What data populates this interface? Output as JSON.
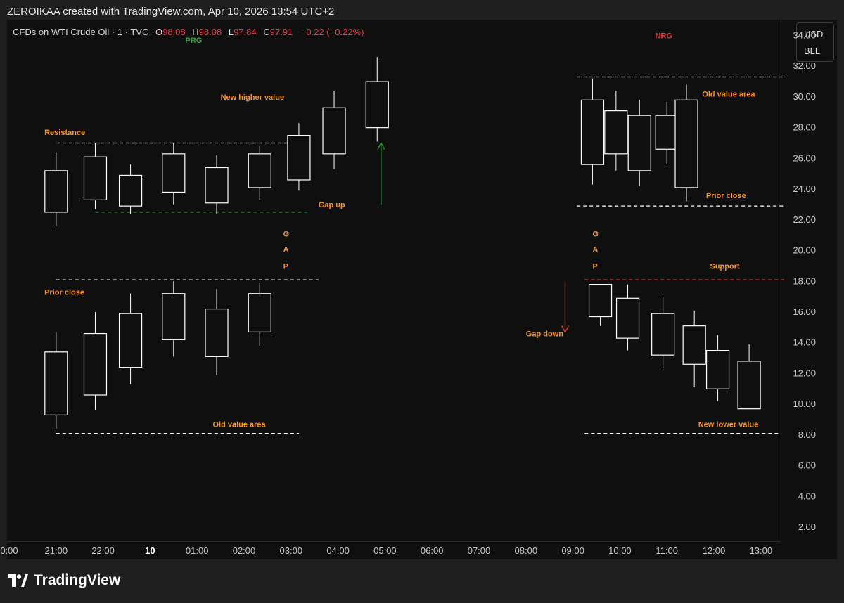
{
  "header": {
    "text": "ZEROIKAA created with TradingView.com, Apr 10, 2026 13:54 UTC+2"
  },
  "legend": {
    "symbol": "CFDs on WTI Crude Oil · 1 · TVC",
    "open_label": "O",
    "open": "98.08",
    "high_label": "H",
    "high": "98.08",
    "low_label": "L",
    "low": "97.84",
    "close_label": "C",
    "close": "97.91",
    "change": "−0.22 (−0.22%)"
  },
  "currency": {
    "top": "USD",
    "bottom": "BLL"
  },
  "footer": {
    "brand": "TradingView"
  },
  "colors": {
    "background": "#1e1e1e",
    "panel": "#0f0f0f",
    "orange": "#f7931e",
    "green": "#2e9e3e",
    "red": "#e0413a",
    "candle": "#ffffff",
    "down": "#f23645"
  },
  "chart_data": {
    "type": "candlestick",
    "title": "",
    "xlabel": "",
    "ylabel": "",
    "ylim": [
      1,
      35
    ],
    "y_ticks": [
      "34.00",
      "32.00",
      "30.00",
      "28.00",
      "26.00",
      "24.00",
      "22.00",
      "20.00",
      "18.00",
      "16.00",
      "14.00",
      "12.00",
      "10.00",
      "8.00",
      "6.00",
      "4.00",
      "2.00"
    ],
    "x_ticks": [
      "0:00",
      "21:00",
      "22:00",
      "10",
      "01:00",
      "02:00",
      "03:00",
      "04:00",
      "05:00",
      "06:00",
      "07:00",
      "08:00",
      "09:00",
      "10:00",
      "11:00",
      "12:00",
      "13:00"
    ],
    "bold_tick": "10",
    "grid": false,
    "series": [
      {
        "group": "prg_lower",
        "candles": [
          {
            "t": "21:00",
            "o": 9.3,
            "h": 14.7,
            "l": 8.4,
            "c": 13.4
          },
          {
            "t": "21:50",
            "o": 10.6,
            "h": 16.0,
            "l": 9.6,
            "c": 14.6
          },
          {
            "t": "22:35",
            "o": 12.4,
            "h": 17.2,
            "l": 11.3,
            "c": 15.9
          },
          {
            "t": "23:30",
            "o": 14.2,
            "h": 18.0,
            "l": 13.1,
            "c": 17.2
          },
          {
            "t": "00:25",
            "o": 13.1,
            "h": 17.5,
            "l": 11.9,
            "c": 16.2
          },
          {
            "t": "01:20",
            "o": 14.7,
            "h": 17.9,
            "l": 13.8,
            "c": 17.2
          }
        ]
      },
      {
        "group": "prg_upper",
        "candles": [
          {
            "t": "21:00",
            "o": 22.5,
            "h": 26.4,
            "l": 21.6,
            "c": 25.2
          },
          {
            "t": "21:50",
            "o": 23.3,
            "h": 27.0,
            "l": 22.7,
            "c": 26.1
          },
          {
            "t": "22:35",
            "o": 22.9,
            "h": 25.6,
            "l": 22.4,
            "c": 24.9
          },
          {
            "t": "23:30",
            "o": 23.8,
            "h": 27.0,
            "l": 23.0,
            "c": 26.3
          },
          {
            "t": "00:25",
            "o": 23.1,
            "h": 26.2,
            "l": 22.4,
            "c": 25.4
          },
          {
            "t": "01:20",
            "o": 24.1,
            "h": 26.8,
            "l": 23.3,
            "c": 26.3
          },
          {
            "t": "02:10",
            "o": 24.6,
            "h": 28.3,
            "l": 23.9,
            "c": 27.5
          },
          {
            "t": "02:55",
            "o": 26.3,
            "h": 30.4,
            "l": 25.3,
            "c": 29.3
          },
          {
            "t": "03:50",
            "o": 28.0,
            "h": 32.6,
            "l": 27.1,
            "c": 31.0
          }
        ]
      },
      {
        "group": "nrg_upper",
        "candles": [
          {
            "t": "08:25",
            "o": 25.6,
            "h": 31.2,
            "l": 24.3,
            "c": 29.8
          },
          {
            "t": "08:55",
            "o": 26.3,
            "h": 30.4,
            "l": 25.2,
            "c": 29.1
          },
          {
            "t": "09:25",
            "o": 25.2,
            "h": 29.8,
            "l": 24.2,
            "c": 28.8
          },
          {
            "t": "10:00",
            "o": 26.6,
            "h": 29.7,
            "l": 25.6,
            "c": 28.8
          },
          {
            "t": "10:25",
            "o": 24.1,
            "h": 30.8,
            "l": 23.2,
            "c": 29.8
          }
        ]
      },
      {
        "group": "nrg_lower",
        "candles": [
          {
            "t": "08:35",
            "o": 15.7,
            "h": 17.8,
            "l": 15.1,
            "c": 17.8
          },
          {
            "t": "09:10",
            "o": 14.3,
            "h": 17.8,
            "l": 13.5,
            "c": 16.9
          },
          {
            "t": "09:55",
            "o": 13.2,
            "h": 17.0,
            "l": 12.2,
            "c": 15.9
          },
          {
            "t": "10:35",
            "o": 12.6,
            "h": 16.1,
            "l": 11.1,
            "c": 15.1
          },
          {
            "t": "11:05",
            "o": 11.0,
            "h": 14.5,
            "l": 10.2,
            "c": 13.5
          },
          {
            "t": "11:45",
            "o": 9.7,
            "h": 13.9,
            "l": 9.7,
            "c": 12.8
          }
        ]
      }
    ],
    "levels": [
      {
        "name": "resistance-line",
        "y": 27.0,
        "from": "21:00",
        "to": "02:10",
        "color": "white"
      },
      {
        "name": "gap-up-line",
        "y": 22.5,
        "from": "21:50",
        "to": "02:25",
        "color": "green"
      },
      {
        "name": "prior-close-left-line",
        "y": 18.1,
        "from": "21:00",
        "to": "02:35",
        "color": "white"
      },
      {
        "name": "old-value-left-line",
        "y": 8.1,
        "from": "21:00",
        "to": "02:10",
        "color": "white"
      },
      {
        "name": "old-value-right-line",
        "y": 31.3,
        "from": "08:05",
        "to": "12:30",
        "color": "white"
      },
      {
        "name": "prior-close-right-line",
        "y": 22.9,
        "from": "08:05",
        "to": "12:30",
        "color": "white"
      },
      {
        "name": "support-line",
        "y": 18.1,
        "from": "08:15",
        "to": "12:30",
        "color": "red"
      },
      {
        "name": "new-lower-value-line",
        "y": 8.1,
        "from": "08:15",
        "to": "12:25",
        "color": "white"
      }
    ],
    "annotations": [
      {
        "name": "prg-label",
        "text": "PRG",
        "t": "23:45",
        "y": 33.7,
        "color": "green"
      },
      {
        "name": "new-higher-value-label",
        "text": "New higher value",
        "t": "00:30",
        "y": 30.0,
        "color": "orange"
      },
      {
        "name": "resistance-label",
        "text": "Resistance",
        "t": "20:45",
        "y": 27.7,
        "color": "orange"
      },
      {
        "name": "gap-up-label",
        "text": "Gap up",
        "t": "02:35",
        "y": 23.0,
        "color": "orange"
      },
      {
        "name": "gap-left-g",
        "text": "G",
        "t": "01:50",
        "y": 21.1,
        "color": "orange"
      },
      {
        "name": "gap-left-a",
        "text": "A",
        "t": "01:50",
        "y": 20.1,
        "color": "orange"
      },
      {
        "name": "gap-left-p",
        "text": "P",
        "t": "01:50",
        "y": 19.0,
        "color": "orange"
      },
      {
        "name": "prior-close-left-label",
        "text": "Prior close",
        "t": "20:45",
        "y": 17.3,
        "color": "orange"
      },
      {
        "name": "old-value-left-label",
        "text": "Old value area",
        "t": "00:20",
        "y": 8.7,
        "color": "orange"
      },
      {
        "name": "nrg-label",
        "text": "NRG",
        "t": "09:45",
        "y": 34.0,
        "color": "red"
      },
      {
        "name": "old-value-right-label",
        "text": "Old value area",
        "t": "10:45",
        "y": 30.2,
        "color": "orange"
      },
      {
        "name": "prior-close-right-label",
        "text": "Prior close",
        "t": "10:50",
        "y": 23.6,
        "color": "orange"
      },
      {
        "name": "gap-right-g",
        "text": "G",
        "t": "08:25",
        "y": 21.1,
        "color": "orange"
      },
      {
        "name": "gap-right-a",
        "text": "A",
        "t": "08:25",
        "y": 20.1,
        "color": "orange"
      },
      {
        "name": "gap-right-p",
        "text": "P",
        "t": "08:25",
        "y": 19.0,
        "color": "orange"
      },
      {
        "name": "support-label",
        "text": "Support",
        "t": "10:55",
        "y": 19.0,
        "color": "orange"
      },
      {
        "name": "gap-down-label",
        "text": "Gap down",
        "t": "07:00",
        "y": 14.6,
        "color": "orange"
      },
      {
        "name": "new-lower-value-label",
        "text": "New lower value",
        "t": "10:40",
        "y": 8.7,
        "color": "orange"
      }
    ],
    "arrows": [
      {
        "name": "gap-up-arrow",
        "direction": "up",
        "t": "03:55",
        "from": 23.0,
        "to": 27.0,
        "color": "green"
      },
      {
        "name": "gap-down-arrow",
        "direction": "down",
        "t": "07:50",
        "from": 18.0,
        "to": 14.7,
        "color": "red"
      }
    ]
  }
}
